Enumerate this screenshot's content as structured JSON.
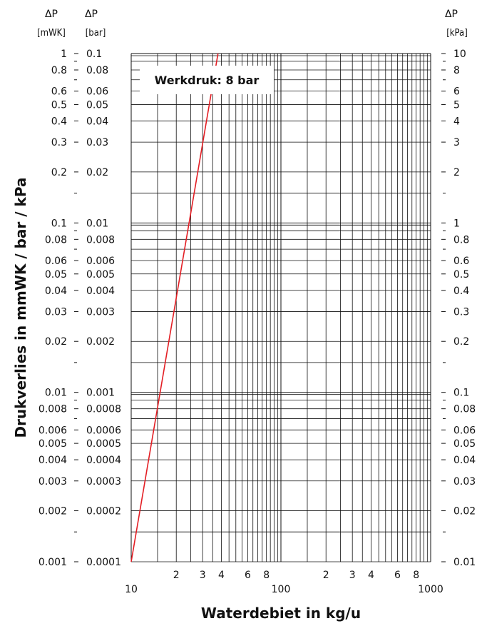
{
  "chart_data": {
    "type": "line",
    "x_scale": "log",
    "y_scale": "log",
    "xlim": [
      10,
      1000
    ],
    "ylim": [
      0.001,
      1
    ],
    "grid": true,
    "xlabel": "Waterdebiet in kg/u",
    "ylabel": "Drukverlies in mmWK / bar / kPa",
    "annotation": "Werkdruk: 8 bar",
    "axis_headers": {
      "mwk": {
        "symbol": "ΔP",
        "unit": "[mWK]"
      },
      "bar": {
        "symbol": "ΔP",
        "unit": "[bar]"
      },
      "kpa": {
        "symbol": "ΔP",
        "unit": "[kPa]"
      }
    },
    "x_tick_labels": [
      {
        "value": 10,
        "label": "10"
      },
      {
        "value": 20,
        "label": "2"
      },
      {
        "value": 30,
        "label": "3"
      },
      {
        "value": 40,
        "label": "4"
      },
      {
        "value": 60,
        "label": "6"
      },
      {
        "value": 80,
        "label": "8"
      },
      {
        "value": 100,
        "label": "100"
      },
      {
        "value": 200,
        "label": "2"
      },
      {
        "value": 300,
        "label": "3"
      },
      {
        "value": 400,
        "label": "4"
      },
      {
        "value": 600,
        "label": "6"
      },
      {
        "value": 800,
        "label": "8"
      },
      {
        "value": 1000,
        "label": "1000"
      }
    ],
    "y_tick_labels": [
      {
        "value": 1,
        "mwk": "1",
        "bar": "0.1",
        "kpa": "10"
      },
      {
        "value": 0.8,
        "mwk": "0.8",
        "bar": "0.08",
        "kpa": "8"
      },
      {
        "value": 0.6,
        "mwk": "0.6",
        "bar": "0.06",
        "kpa": "6"
      },
      {
        "value": 0.5,
        "mwk": "0.5",
        "bar": "0.05",
        "kpa": "5"
      },
      {
        "value": 0.4,
        "mwk": "0.4",
        "bar": "0.04",
        "kpa": "4"
      },
      {
        "value": 0.3,
        "mwk": "0.3",
        "bar": "0.03",
        "kpa": "3"
      },
      {
        "value": 0.2,
        "mwk": "0.2",
        "bar": "0.02",
        "kpa": "2"
      },
      {
        "value": 0.1,
        "mwk": "0.1",
        "bar": "0.01",
        "kpa": "1"
      },
      {
        "value": 0.08,
        "mwk": "0.08",
        "bar": "0.008",
        "kpa": "0.8"
      },
      {
        "value": 0.06,
        "mwk": "0.06",
        "bar": "0.006",
        "kpa": "0.6"
      },
      {
        "value": 0.05,
        "mwk": "0.05",
        "bar": "0.005",
        "kpa": "0.5"
      },
      {
        "value": 0.04,
        "mwk": "0.04",
        "bar": "0.004",
        "kpa": "0.4"
      },
      {
        "value": 0.03,
        "mwk": "0.03",
        "bar": "0.003",
        "kpa": "0.3"
      },
      {
        "value": 0.02,
        "mwk": "0.02",
        "bar": "0.002",
        "kpa": "0.2"
      },
      {
        "value": 0.01,
        "mwk": "0.01",
        "bar": "0.001",
        "kpa": "0.1"
      },
      {
        "value": 0.008,
        "mwk": "0.008",
        "bar": "0.0008",
        "kpa": "0.08"
      },
      {
        "value": 0.006,
        "mwk": "0.006",
        "bar": "0.0006",
        "kpa": "0.06"
      },
      {
        "value": 0.005,
        "mwk": "0.005",
        "bar": "0.0005",
        "kpa": "0.05"
      },
      {
        "value": 0.004,
        "mwk": "0.004",
        "bar": "0.0004",
        "kpa": "0.04"
      },
      {
        "value": 0.003,
        "mwk": "0.003",
        "bar": "0.0003",
        "kpa": "0.03"
      },
      {
        "value": 0.002,
        "mwk": "0.002",
        "bar": "0.0002",
        "kpa": "0.02"
      },
      {
        "value": 0.001,
        "mwk": "0.001",
        "bar": "0.0001",
        "kpa": "0.01"
      }
    ],
    "series": [
      {
        "color": "#e31e24",
        "x": [
          10,
          38
        ],
        "y": [
          0.001,
          1
        ]
      }
    ]
  }
}
